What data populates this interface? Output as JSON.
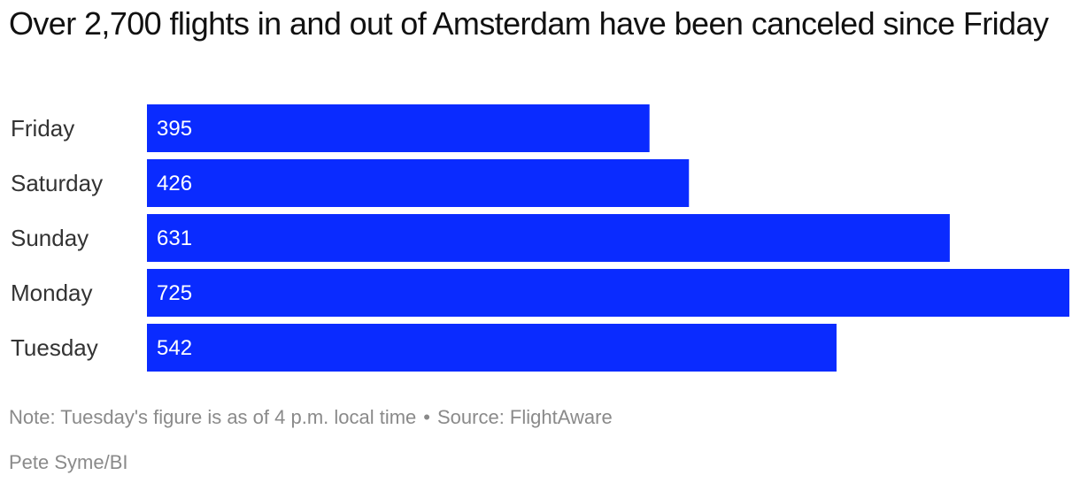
{
  "title": "Over 2,700 flights in and out of Amsterdam have been canceled since Friday",
  "note": "Note: Tuesday's figure is as of 4 p.m. local time",
  "separator": "•",
  "source": "Source: FlightAware",
  "credit": "Pete Syme/BI",
  "colors": {
    "bar": "#0A2BFF",
    "value_text": "#FFFFFF",
    "category_text": "#333333",
    "footer_text": "#8A8A8A"
  },
  "chart_data": {
    "type": "bar",
    "orientation": "horizontal",
    "categories": [
      "Friday",
      "Saturday",
      "Sunday",
      "Monday",
      "Tuesday"
    ],
    "values": [
      395,
      426,
      631,
      725,
      542
    ],
    "value_labels": [
      "395",
      "426",
      "631",
      "725",
      "542"
    ],
    "title": "Over 2,700 flights in and out of Amsterdam have been canceled since Friday",
    "xlabel": "",
    "ylabel": "",
    "xlim": [
      0,
      725
    ],
    "grid": false,
    "legend": "none"
  }
}
